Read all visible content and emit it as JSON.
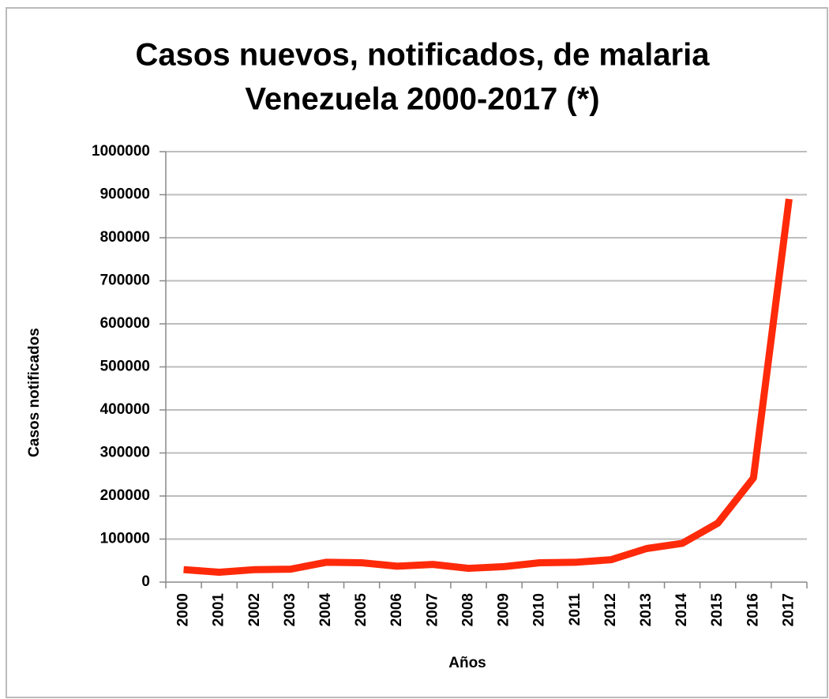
{
  "chart_data": {
    "type": "line",
    "title": [
      "Casos nuevos, notificados, de malaria",
      "Venezuela 2000-2017 (*)"
    ],
    "x_label": "Años",
    "y_label": "Casos notificados",
    "categories": [
      "2000",
      "2001",
      "2002",
      "2003",
      "2004",
      "2005",
      "2006",
      "2007",
      "2008",
      "2009",
      "2010",
      "2011",
      "2012",
      "2013",
      "2014",
      "2015",
      "2016",
      "2017"
    ],
    "series": [
      {
        "color": "#ff2a0a",
        "values": [
          29000,
          23000,
          29000,
          30000,
          46000,
          45000,
          37000,
          41000,
          32000,
          36000,
          45000,
          46000,
          52000,
          78000,
          90000,
          137000,
          242000,
          890000
        ]
      }
    ],
    "ylim": [
      0,
      1000000
    ],
    "yticks": [
      0,
      100000,
      200000,
      300000,
      400000,
      500000,
      600000,
      700000,
      800000,
      900000,
      1000000
    ],
    "grid": true
  }
}
